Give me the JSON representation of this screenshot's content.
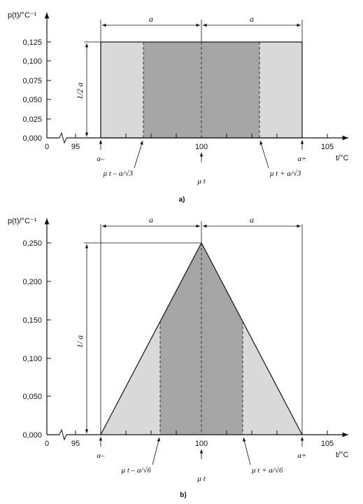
{
  "chart_data": [
    {
      "type": "area",
      "panel_label": "a)",
      "ylabel": "p(t)/°C⁻¹",
      "xlabel": "t/°C",
      "y_ticks": [
        "0,000",
        "0,025",
        "0,050",
        "0,075",
        "0,100",
        "0,125"
      ],
      "ylim": [
        0,
        0.125
      ],
      "x_ticks": [
        "0",
        "95",
        "100",
        "105"
      ],
      "xlim": [
        96,
        106.5
      ],
      "x_break": true,
      "series": [
        {
          "x": [
            96,
            96,
            104,
            104
          ],
          "values": [
            0,
            0.125,
            0.125,
            0
          ]
        }
      ],
      "shaded_inner": [
        97.69,
        102.31
      ],
      "shade_outer_color": "#d9d9d9",
      "shade_inner_color": "#a6a6a6",
      "dimensions": {
        "top_span_label": "a",
        "height_label": "1/2 a"
      },
      "annotations": {
        "a_minus": "a–",
        "a_plus": "a+",
        "mu": "μ t",
        "left_marker": "μ t – a/√3",
        "right_marker": "μ t + a/√3"
      }
    },
    {
      "type": "area",
      "panel_label": "b)",
      "ylabel": "p(t)/°C⁻¹",
      "xlabel": "t/°C",
      "y_ticks": [
        "0,000",
        "0,050",
        "0,100",
        "0,150",
        "0,200",
        "0,250"
      ],
      "ylim": [
        0,
        0.25
      ],
      "x_ticks": [
        "0",
        "95",
        "100",
        "105"
      ],
      "xlim": [
        96,
        106.5
      ],
      "x_break": true,
      "series": [
        {
          "x": [
            96,
            100,
            104
          ],
          "values": [
            0,
            0.25,
            0
          ]
        }
      ],
      "shaded_inner": [
        98.37,
        101.63
      ],
      "shade_outer_color": "#d9d9d9",
      "shade_inner_color": "#a6a6a6",
      "dimensions": {
        "top_span_label": "a",
        "height_label": "1/ a"
      },
      "annotations": {
        "a_minus": "a–",
        "a_plus": "a+",
        "mu": "μ t",
        "left_marker": "μ t – a/√6",
        "right_marker": "μ t + a/√6"
      }
    }
  ]
}
